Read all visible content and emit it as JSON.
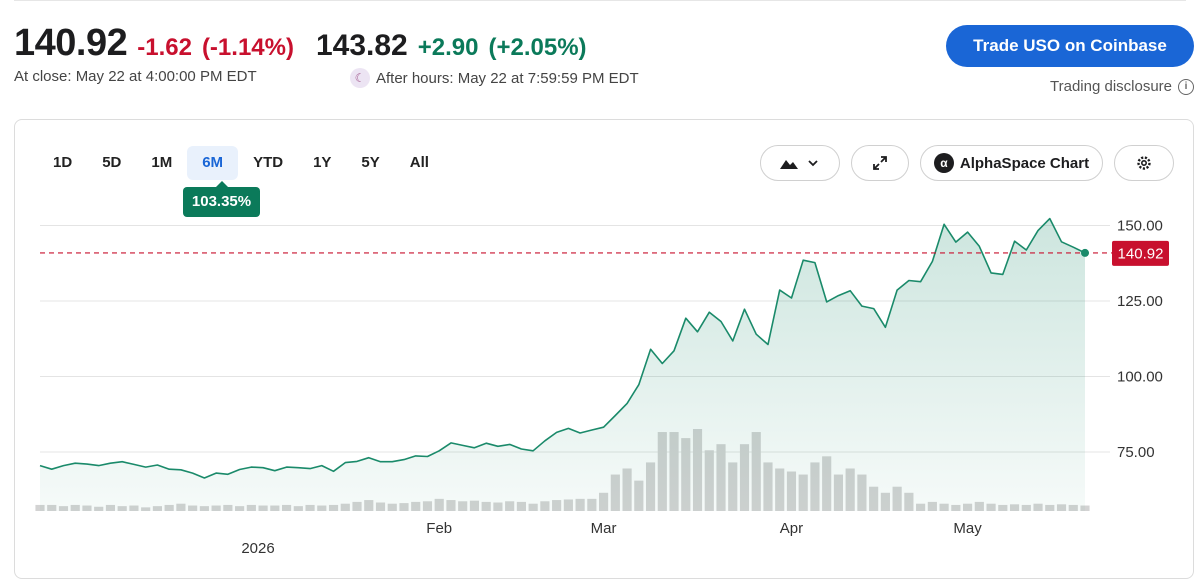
{
  "quote": {
    "price": "140.92",
    "change": "-1.62",
    "change_pct": "(-1.14%)",
    "close_label": "At close: May 22 at 4:00:00 PM EDT",
    "after_price": "143.82",
    "after_change": "+2.90",
    "after_change_pct": "(+2.05%)",
    "after_label": "After hours: May 22 at 7:59:59 PM EDT"
  },
  "trade_button": "Trade USO on Coinbase",
  "disclosure": "Trading disclosure",
  "ranges": [
    "1D",
    "5D",
    "1M",
    "6M",
    "YTD",
    "1Y",
    "5Y",
    "All"
  ],
  "active_range": "6M",
  "performance_badge": "103.35%",
  "toolbar": {
    "alpha_label": "AlphaSpace Chart"
  },
  "icons": [
    "mountain-chart-icon",
    "chevron-down-icon",
    "expand-icon",
    "alphaspace-logo-icon",
    "gear-icon",
    "info-icon",
    "moon-icon"
  ],
  "colors": {
    "line": "#1a8a6a",
    "negative": "#c8102e",
    "positive": "#0b7a5a",
    "button": "#1a66d6",
    "volume": "#d3d3d3"
  },
  "chart_data": {
    "type": "area",
    "x_labels": [
      {
        "label": "Feb",
        "index": 34
      },
      {
        "label": "Mar",
        "index": 48
      },
      {
        "label": "Apr",
        "index": 64
      },
      {
        "label": "May",
        "index": 79
      }
    ],
    "year_label": "2026",
    "y_ticks": [
      75,
      100,
      125,
      150
    ],
    "y_tick_labels": [
      "75.00",
      "100.00",
      "125.00",
      "150.00"
    ],
    "ylim": [
      55,
      158
    ],
    "current_value": 140.92,
    "current_label": "140.92",
    "grid": true,
    "close": [
      70.5,
      69.3,
      70.5,
      71.3,
      71,
      70.5,
      71.3,
      71.8,
      70.9,
      70,
      70.7,
      69.3,
      69.1,
      68,
      66.4,
      68,
      67.6,
      69.2,
      70,
      69.8,
      68.8,
      70,
      69.8,
      69.5,
      70.5,
      68.6,
      71.5,
      71.9,
      73.1,
      71.8,
      71.8,
      72.5,
      73.7,
      73.5,
      75.4,
      78,
      77.2,
      76.4,
      77.9,
      76.9,
      77.5,
      76,
      75.4,
      78.7,
      81.5,
      82.8,
      81.3,
      82.3,
      83.2,
      87.1,
      91.1,
      97.3,
      109,
      104.3,
      108.5,
      119.3,
      114.8,
      121.3,
      118.2,
      111.8,
      122.3,
      114,
      110.6,
      128.6,
      126,
      138.5,
      137.7,
      124.7,
      126.8,
      128.4,
      123.3,
      122.5,
      116.3,
      128.6,
      131.8,
      131.4,
      138.1,
      150.4,
      144.5,
      147.8,
      143.1,
      134.3,
      133.8,
      144.8,
      141.9,
      148.3,
      152.3,
      144.6,
      142.8,
      140.92
    ],
    "volume": [
      1,
      1,
      0.8,
      1,
      0.9,
      0.7,
      1,
      0.8,
      0.9,
      0.6,
      0.8,
      1,
      1.2,
      0.9,
      0.8,
      0.9,
      1,
      0.8,
      1,
      0.9,
      0.9,
      1,
      0.8,
      1,
      0.9,
      1,
      1.2,
      1.5,
      1.8,
      1.4,
      1.2,
      1.3,
      1.5,
      1.6,
      2,
      1.8,
      1.6,
      1.7,
      1.5,
      1.4,
      1.6,
      1.5,
      1.2,
      1.6,
      1.8,
      1.9,
      2,
      2,
      3,
      6,
      7,
      5,
      8,
      13,
      13,
      12,
      13.5,
      10,
      11,
      8,
      11,
      13,
      8,
      7,
      6.5,
      6,
      8,
      9,
      6,
      7,
      6,
      4,
      3,
      4,
      3,
      1.2,
      1.5,
      1.2,
      1,
      1.2,
      1.5,
      1.2,
      1,
      1.1,
      1,
      1.2,
      1,
      1.1,
      1,
      0.9
    ]
  }
}
